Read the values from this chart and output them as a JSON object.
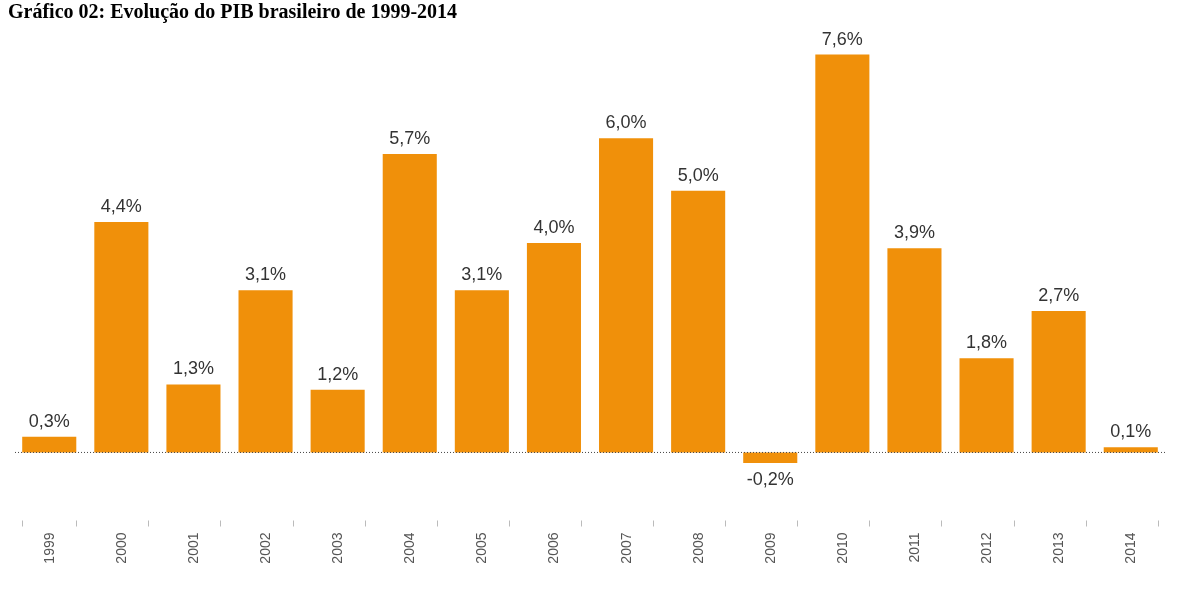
{
  "chart_data": {
    "type": "bar",
    "title": "Gráfico 02: Evolução do PIB brasileiro de 1999-2014",
    "categories": [
      "1999",
      "2000",
      "2001",
      "2002",
      "2003",
      "2004",
      "2005",
      "2006",
      "2007",
      "2008",
      "2009",
      "2010",
      "2011",
      "2012",
      "2013",
      "2014"
    ],
    "values": [
      0.3,
      4.4,
      1.3,
      3.1,
      1.2,
      5.7,
      3.1,
      4.0,
      6.0,
      5.0,
      -0.2,
      7.6,
      3.9,
      1.8,
      2.7,
      0.1
    ],
    "value_labels": [
      "0,3%",
      "4,4%",
      "1,3%",
      "3,1%",
      "1,2%",
      "5,7%",
      "3,1%",
      "4,0%",
      "6,0%",
      "5,0%",
      "-0,2%",
      "7,6%",
      "3,9%",
      "1,8%",
      "2,7%",
      "0,1%"
    ],
    "color": "#f0900a",
    "grid": false,
    "ref_lines": [
      {
        "axis": "y",
        "value": 0,
        "color": "#444444",
        "line_style": "dotted"
      }
    ]
  }
}
